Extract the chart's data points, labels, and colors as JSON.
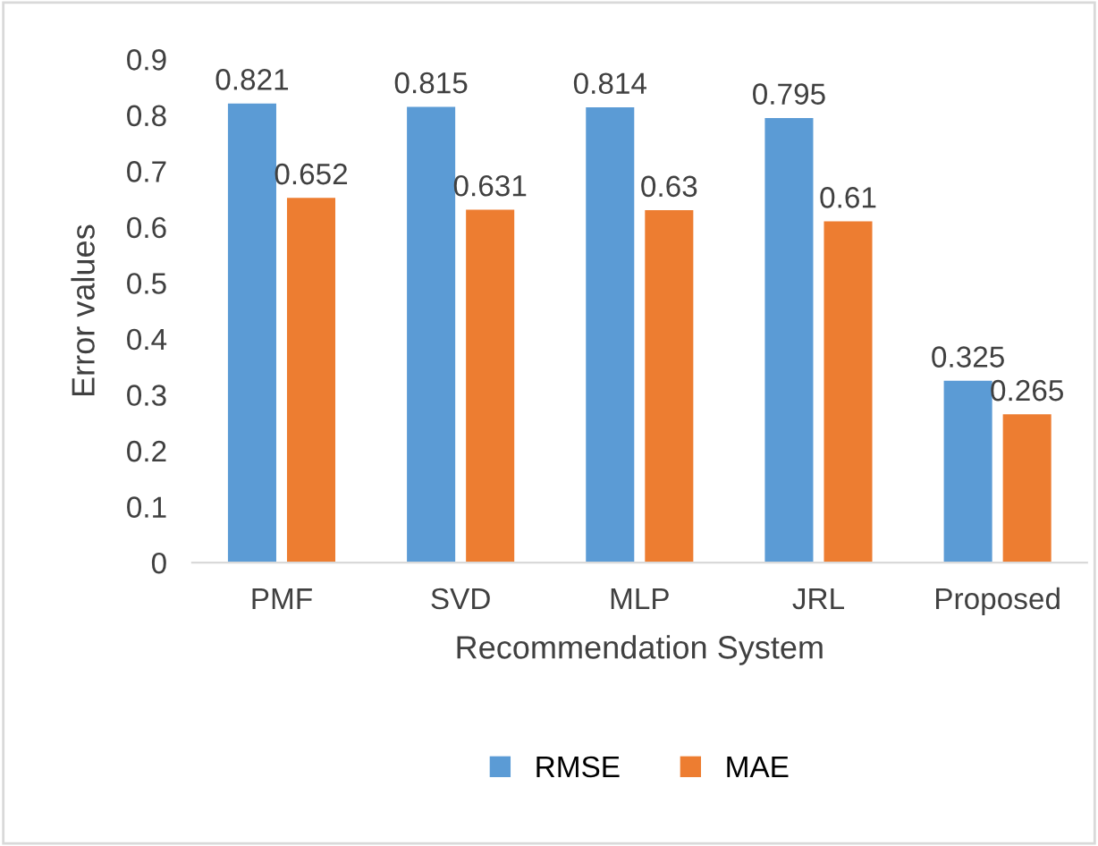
{
  "chart_data": {
    "type": "bar",
    "xlabel": "Recommendation System",
    "ylabel": "Error values",
    "categories": [
      "PMF",
      "SVD",
      "MLP",
      "JRL",
      "Proposed"
    ],
    "series": [
      {
        "name": "RMSE",
        "color": "#5b9bd5",
        "values": [
          0.821,
          0.815,
          0.814,
          0.795,
          0.325
        ]
      },
      {
        "name": "MAE",
        "color": "#ed7d31",
        "values": [
          0.652,
          0.631,
          0.63,
          0.61,
          0.265
        ]
      }
    ],
    "ylim": [
      0,
      0.9
    ],
    "yticks": [
      {
        "value": 0,
        "label": "0"
      },
      0.1,
      0.2,
      0.3,
      0.4,
      0.5,
      0.6,
      0.7,
      0.8,
      0.9
    ],
    "data_labels": true,
    "grid": false,
    "legend": "bottom"
  }
}
